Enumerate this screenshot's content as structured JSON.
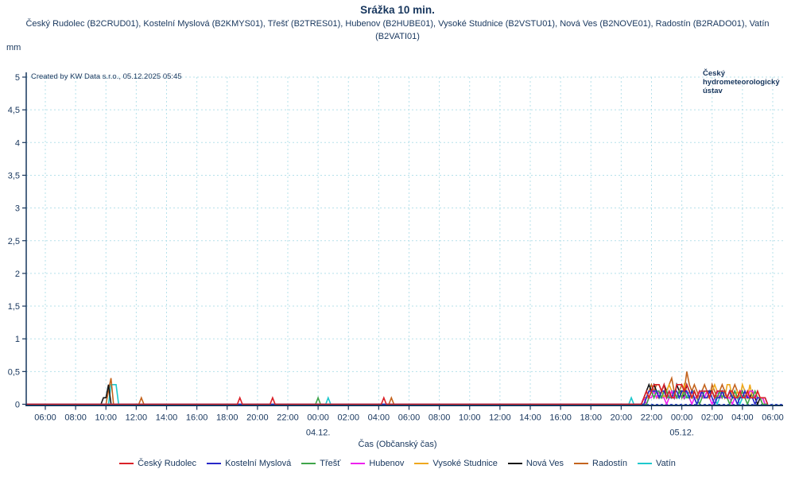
{
  "header": {
    "title": "Srážka 10 min.",
    "subtitle": "Český Rudolec (B2CRUD01), Kostelní Myslová (B2KMYS01), Třešť (B2TRES01), Hubenov (B2HUBE01), Vysoké Studnice (B2VSTU01), Nová Ves (B2NOVE01), Radostín (B2RADO01), Vatín (B2VATI01)"
  },
  "plot": {
    "created_by": "Created by KW Data s.r.o., 05.12.2025 05:45",
    "unit_label": "mm",
    "logo_text": "Český hydrometeorologický ústav"
  },
  "colors": {
    "text_navy": "#17365d",
    "axis": "#17365d",
    "grid": "#b5e0ea",
    "zero_line": "#4055d8",
    "background": "#ffffff"
  },
  "chart_data": {
    "type": "line",
    "title": "Srážka 10 min.",
    "xlabel": "Čas (Občanský čas)",
    "ylabel": "mm",
    "ylim": [
      0,
      5
    ],
    "grid": true,
    "legend_position": "bottom",
    "ytick_labels": [
      "0",
      "0,5",
      "1",
      "1,5",
      "2",
      "2,5",
      "3",
      "3,5",
      "4",
      "4,5",
      "5"
    ],
    "ytick_step": 0.5,
    "x_hours_span": 48,
    "xtick_interval_hours": 2,
    "xtick_labels": [
      "06:00",
      "08:00",
      "10:00",
      "12:00",
      "14:00",
      "16:00",
      "18:00",
      "20:00",
      "22:00",
      "00:00",
      "02:00",
      "04:00",
      "06:00",
      "08:00",
      "10:00",
      "12:00",
      "14:00",
      "16:00",
      "18:00",
      "20:00",
      "22:00",
      "00:00",
      "02:00",
      "04:00",
      "06:00"
    ],
    "date_labels": [
      {
        "label": "04.12.",
        "hour": 18
      },
      {
        "label": "05.12.",
        "hour": 42
      }
    ],
    "time_origin": "03.12. 06:00",
    "series": [
      {
        "name": "Český Rudolec",
        "code": "B2CRUD01",
        "color": "#da2128",
        "segments": [
          {
            "start": 12.67,
            "step_min": 10,
            "values": [
              0,
              0.1,
              0
            ]
          },
          {
            "start": 14.83,
            "step_min": 10,
            "values": [
              0,
              0.1,
              0
            ]
          },
          {
            "start": 22.17,
            "step_min": 10,
            "values": [
              0,
              0.1,
              0
            ]
          },
          {
            "start": 39.33,
            "step_min": 10,
            "values": [
              0,
              0.1,
              0.2,
              0.1,
              0.2,
              0.3,
              0.3,
              0.3,
              0.2,
              0.3,
              0.1,
              0.2,
              0.1,
              0.1,
              0.3,
              0.3,
              0.3,
              0.2,
              0.3,
              0.2,
              0.1,
              0.2,
              0.1,
              0.2,
              0.2,
              0.2,
              0.2,
              0.1,
              0.2,
              0.1,
              0.2,
              0.2,
              0.2,
              0.2,
              0.1,
              0.2,
              0.2,
              0.1,
              0.1,
              0.2,
              0.1,
              0.1,
              0.2,
              0.1,
              0.1,
              0.1,
              0.2,
              0.1,
              0.1,
              0.1,
              0
            ]
          }
        ]
      },
      {
        "name": "Kostelní Myslová",
        "code": "B2KMYS01",
        "color": "#2828c8",
        "segments": [
          {
            "start": 39.33,
            "step_min": 10,
            "values": [
              0,
              0,
              0.1,
              0.2,
              0.2,
              0.2,
              0.2,
              0.1,
              0.2,
              0.2,
              0.1,
              0.2,
              0.1,
              0.2,
              0.2,
              0.1,
              0.2,
              0.2,
              0.2,
              0.1,
              0.2,
              0.1,
              0,
              0.1,
              0.2,
              0.1,
              0.1,
              0.2,
              0.1,
              0,
              0.1,
              0.1,
              0.2,
              0.1,
              0.1,
              0.2,
              0.1,
              0.1,
              0,
              0.1,
              0.1,
              0.2,
              0.1,
              0.1,
              0.1,
              0,
              0.1,
              0.1,
              0.1,
              0.1,
              0
            ]
          }
        ]
      },
      {
        "name": "Třešť",
        "code": "B2TRES01",
        "color": "#3fa54a",
        "segments": [
          {
            "start": 17.83,
            "step_min": 10,
            "values": [
              0,
              0.1,
              0
            ]
          },
          {
            "start": 39.33,
            "step_min": 10,
            "values": [
              0,
              0,
              0,
              0.1,
              0.2,
              0.1,
              0.2,
              0.2,
              0.1,
              0.2,
              0.2,
              0.1,
              0.1,
              0.2,
              0.1,
              0.2,
              0.1,
              0.2,
              0.1,
              0.1,
              0.2,
              0.2,
              0.1,
              0,
              0.1,
              0.2,
              0.2,
              0.1,
              0.2,
              0.1,
              0.1,
              0.2,
              0.1,
              0.2,
              0.1,
              0,
              0.1,
              0.2,
              0.1,
              0.1,
              0.2,
              0.1,
              0,
              0.1,
              0.1,
              0.2,
              0.1,
              0.1,
              0,
              0,
              0
            ]
          }
        ]
      },
      {
        "name": "Hubenov",
        "code": "B2HUBE01",
        "color": "#ee22ee",
        "segments": [
          {
            "start": 39.33,
            "step_min": 10,
            "values": [
              0,
              0.1,
              0,
              0.1,
              0.1,
              0.2,
              0.1,
              0.2,
              0.1,
              0.1,
              0,
              0.1,
              0.2,
              0.1,
              0.1,
              0.2,
              0.1,
              0.1,
              0.2,
              0.1,
              0,
              0.1,
              0.1,
              0.2,
              0.1,
              0.1,
              0.2,
              0.1,
              0,
              0.1,
              0.2,
              0.1,
              0.1,
              0.2,
              0.1,
              0.1,
              0,
              0.1,
              0.1,
              0.2,
              0.2,
              0.1,
              0.1,
              0.2,
              0.2,
              0.1,
              0.1,
              0.1,
              0.1,
              0,
              0
            ]
          }
        ]
      },
      {
        "name": "Vysoké Studnice",
        "code": "B2VSTU01",
        "color": "#efa81e",
        "segments": [
          {
            "start": 39.33,
            "step_min": 10,
            "values": [
              0,
              0,
              0.1,
              0.1,
              0.2,
              0.2,
              0.1,
              0.1,
              0.2,
              0.1,
              0.2,
              0.3,
              0.2,
              0.1,
              0.1,
              0.2,
              0.1,
              0.3,
              0.2,
              0.1,
              0.1,
              0.2,
              0.1,
              0.1,
              0.2,
              0.1,
              0.1,
              0.1,
              0.2,
              0.3,
              0.2,
              0.1,
              0.2,
              0.1,
              0.3,
              0.3,
              0.1,
              0.1,
              0.2,
              0.1,
              0.3,
              0.2,
              0.1,
              0.3,
              0.1,
              0.1,
              0.2,
              0.1,
              0.1,
              0,
              0
            ]
          }
        ]
      },
      {
        "name": "Nová Ves",
        "code": "B2NOVE01",
        "color": "#161616",
        "segments": [
          {
            "start": 3.67,
            "step_min": 10,
            "values": [
              0,
              0.1,
              0.1,
              0.3,
              0
            ]
          },
          {
            "start": 39.33,
            "step_min": 10,
            "values": [
              0,
              0.1,
              0.2,
              0.3,
              0.2,
              0.3,
              0.2,
              0.1,
              0.2,
              0.3,
              0.2,
              0.1,
              0.2,
              0.1,
              0.3,
              0.2,
              0.2,
              0.1,
              0.3,
              0.2,
              0.1,
              0.2,
              0.1,
              0.2,
              0.1,
              0.1,
              0.2,
              0.2,
              0.2,
              0.1,
              0.2,
              0.2,
              0.2,
              0.1,
              0.1,
              0.2,
              0.1,
              0.2,
              0.1,
              0.1,
              0.2,
              0.1,
              0.1,
              0.1,
              0.2,
              0.1,
              0,
              0.1,
              0.1,
              0,
              0
            ]
          }
        ]
      },
      {
        "name": "Radostín",
        "code": "B2RADO01",
        "color": "#c4641e",
        "segments": [
          {
            "start": 4.0,
            "step_min": 10,
            "values": [
              0,
              0.2,
              0.4,
              0
            ]
          },
          {
            "start": 6.17,
            "step_min": 10,
            "values": [
              0,
              0.1,
              0
            ]
          },
          {
            "start": 22.67,
            "step_min": 10,
            "values": [
              0,
              0.1,
              0
            ]
          },
          {
            "start": 39.33,
            "step_min": 10,
            "values": [
              0,
              0.1,
              0.1,
              0.2,
              0.3,
              0.2,
              0.3,
              0.3,
              0.2,
              0.1,
              0.2,
              0.3,
              0.4,
              0.2,
              0.1,
              0.2,
              0.3,
              0.2,
              0.5,
              0.3,
              0.2,
              0.3,
              0.2,
              0.1,
              0.2,
              0.3,
              0.2,
              0.1,
              0.3,
              0.2,
              0.1,
              0.2,
              0.3,
              0.2,
              0.1,
              0.1,
              0.2,
              0.3,
              0.2,
              0.1,
              0.2,
              0.1,
              0.2,
              0.1,
              0.2,
              0.1,
              0.1,
              0.1,
              0,
              0,
              0
            ]
          }
        ]
      },
      {
        "name": "Vatín",
        "code": "B2VATI01",
        "color": "#1ec8cd",
        "segments": [
          {
            "start": 4.17,
            "step_min": 10,
            "values": [
              0,
              0.3,
              0.3,
              0.3,
              0
            ]
          },
          {
            "start": 18.5,
            "step_min": 10,
            "values": [
              0,
              0.1,
              0
            ]
          },
          {
            "start": 38.5,
            "step_min": 10,
            "values": [
              0,
              0.1,
              0
            ]
          },
          {
            "start": 39.33,
            "step_min": 10,
            "values": [
              0,
              0,
              0.1,
              0.1,
              0.2,
              0.1,
              0.2,
              0.1,
              0.1,
              0.2,
              0.1,
              0.1,
              0.2,
              0.2,
              0.1,
              0.1,
              0.2,
              0.1,
              0.1,
              0.2,
              0.1,
              0.1,
              0,
              0.1,
              0.2,
              0.1,
              0.1,
              0.1,
              0.2,
              0.1,
              0,
              0.1,
              0.1,
              0.2,
              0.1,
              0.1,
              0.2,
              0.1,
              0.1,
              0,
              0.1,
              0.2,
              0.1,
              0.1,
              0.1,
              0.1,
              0.1,
              0.1,
              0,
              0,
              0
            ]
          }
        ]
      }
    ]
  }
}
